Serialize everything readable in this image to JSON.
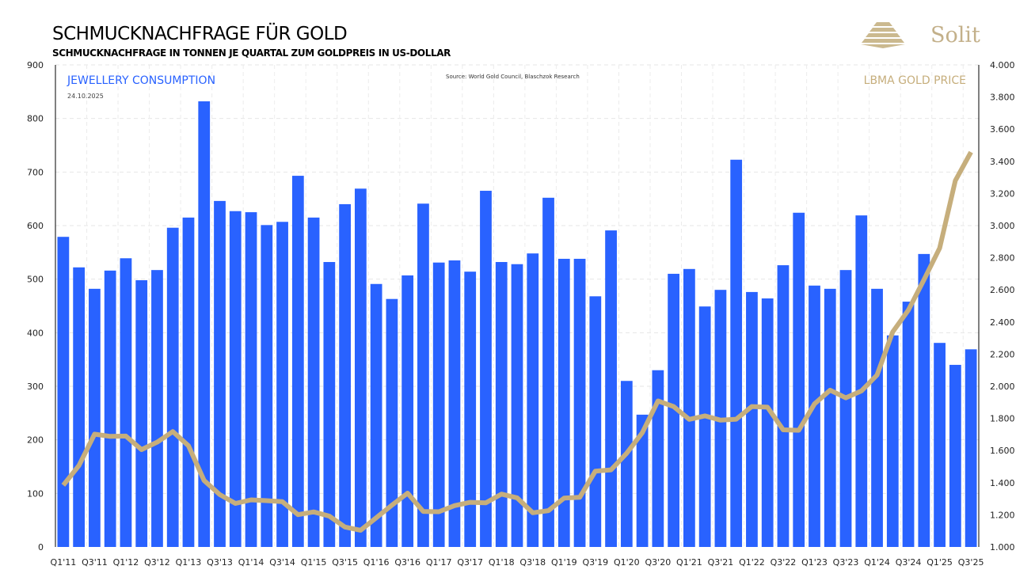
{
  "header": {
    "title": "SCHMUCKNACHFRAGE FÜR GOLD",
    "subtitle": "SCHMUCKNACHFRAGE IN TONNEN JE QUARTAL ZUM GOLDPREIS IN US-DOLLAR",
    "logo_text": "Solit"
  },
  "chart_data": {
    "type": "bar+line",
    "source": "Source:  World  Gold Council,  Blaschzok  Research",
    "date": "24.10.2025",
    "grid": true,
    "colors": {
      "bars": "#2962ff",
      "line": "#c6ae7c"
    },
    "left_axis": {
      "ylim": [
        0,
        900
      ],
      "ticks": [
        "0",
        "100",
        "200",
        "300",
        "400",
        "500",
        "600",
        "700",
        "800",
        "900"
      ]
    },
    "right_axis": {
      "ylim": [
        1000,
        4000
      ],
      "ticks": [
        "1.000",
        "1.200",
        "1.400",
        "1.600",
        "1.800",
        "2.000",
        "2.200",
        "2.400",
        "2.600",
        "2.800",
        "3.000",
        "3.200",
        "3.400",
        "3.600",
        "3.800",
        "4.000"
      ]
    },
    "categories": [
      "Q1'11",
      "Q2'11",
      "Q3'11",
      "Q4'11",
      "Q1'12",
      "Q2'12",
      "Q3'12",
      "Q4'12",
      "Q1'13",
      "Q2'13",
      "Q3'13",
      "Q4'13",
      "Q1'14",
      "Q2'14",
      "Q3'14",
      "Q4'14",
      "Q1'15",
      "Q2'15",
      "Q3'15",
      "Q4'15",
      "Q1'16",
      "Q2'16",
      "Q3'16",
      "Q4'16",
      "Q1'17",
      "Q2'17",
      "Q3'17",
      "Q4'17",
      "Q1'18",
      "Q2'18",
      "Q3'18",
      "Q4'18",
      "Q1'19",
      "Q2'19",
      "Q3'19",
      "Q4'19",
      "Q1'20",
      "Q2'20",
      "Q3'20",
      "Q4'20",
      "Q1'21",
      "Q2'21",
      "Q3'21",
      "Q4'21",
      "Q1'22",
      "Q2'22",
      "Q3'22",
      "Q4'22",
      "Q1'23",
      "Q2'23",
      "Q3'23",
      "Q4'23",
      "Q1'24",
      "Q2'24",
      "Q3'24",
      "Q4'24",
      "Q1'25",
      "Q2'25",
      "Q3'25"
    ],
    "x_tick_labels": [
      "Q1'11",
      "Q3'11",
      "Q1'12",
      "Q3'12",
      "Q1'13",
      "Q3'13",
      "Q1'14",
      "Q3'14",
      "Q1'15",
      "Q3'15",
      "Q1'16",
      "Q3'16",
      "Q1'17",
      "Q3'17",
      "Q1'18",
      "Q3'18",
      "Q1'19",
      "Q3'19",
      "Q1'20",
      "Q3'20",
      "Q1'21",
      "Q3'21",
      "Q1'22",
      "Q3'22",
      "Q1'23",
      "Q3'23",
      "Q1'24",
      "Q3'24",
      "Q1'25",
      "Q3'25"
    ],
    "series": [
      {
        "name": "JEWELLERY CONSUMPTION",
        "type": "bar",
        "axis": "left",
        "values": [
          579,
          522,
          482,
          516,
          539,
          498,
          517,
          596,
          615,
          832,
          646,
          627,
          625,
          601,
          607,
          693,
          615,
          532,
          640,
          669,
          491,
          463,
          507,
          641,
          531,
          535,
          514,
          665,
          532,
          528,
          548,
          652,
          538,
          538,
          468,
          591,
          310,
          247,
          330,
          510,
          519,
          449,
          480,
          723,
          476,
          464,
          526,
          624,
          488,
          482,
          517,
          619,
          482,
          395,
          458,
          547,
          381,
          340,
          369
        ]
      },
      {
        "name": "LBMA GOLD PRICE",
        "type": "line",
        "axis": "right",
        "values": [
          1384,
          1506,
          1702,
          1688,
          1690,
          1606,
          1652,
          1718,
          1630,
          1414,
          1326,
          1271,
          1293,
          1288,
          1282,
          1201,
          1218,
          1192,
          1124,
          1104,
          1182,
          1260,
          1335,
          1221,
          1219,
          1257,
          1278,
          1275,
          1329,
          1306,
          1213,
          1226,
          1304,
          1309,
          1472,
          1480,
          1583,
          1711,
          1909,
          1874,
          1794,
          1816,
          1789,
          1795,
          1874,
          1870,
          1729,
          1726,
          1890,
          1976,
          1928,
          1971,
          2070,
          2338,
          2474,
          2663,
          2860,
          3280,
          3457
        ]
      }
    ]
  }
}
